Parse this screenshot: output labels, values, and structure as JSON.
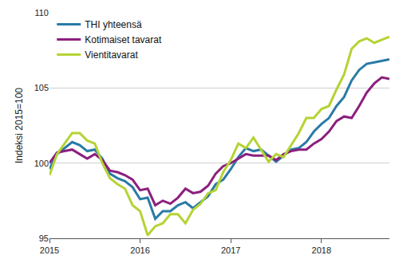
{
  "chart_data": {
    "type": "line",
    "y_label": "Indeksi 2015=100",
    "categories": [
      "2015",
      null,
      null,
      null,
      null,
      null,
      null,
      null,
      null,
      null,
      null,
      null,
      "2016",
      null,
      null,
      null,
      null,
      null,
      null,
      null,
      null,
      null,
      null,
      null,
      "2017",
      null,
      null,
      null,
      null,
      null,
      null,
      null,
      null,
      null,
      null,
      null,
      "2018",
      null,
      null,
      null,
      null,
      null,
      null,
      null,
      null,
      null
    ],
    "series": [
      {
        "name": "THI yhteensä",
        "color": "#2a7aa6",
        "values": [
          99.6,
          100.6,
          101.0,
          101.4,
          101.2,
          100.8,
          100.9,
          100.3,
          99.3,
          99.0,
          98.8,
          98.4,
          97.6,
          97.7,
          96.3,
          96.8,
          96.8,
          97.2,
          97.4,
          97.0,
          97.4,
          97.8,
          98.6,
          98.9,
          99.6,
          100.4,
          101.0,
          100.8,
          100.9,
          100.5,
          100.1,
          100.5,
          100.9,
          101.0,
          101.4,
          102.1,
          102.6,
          103.0,
          103.8,
          104.4,
          105.5,
          106.2,
          106.6,
          106.7,
          106.8,
          106.9
        ]
      },
      {
        "name": "Kotimaiset tavarat",
        "color": "#8c1f7e",
        "values": [
          100.0,
          100.7,
          100.8,
          100.9,
          100.6,
          100.3,
          100.6,
          100.2,
          99.5,
          99.4,
          99.2,
          98.9,
          98.2,
          98.3,
          97.2,
          97.5,
          97.3,
          97.7,
          98.3,
          98.0,
          98.1,
          98.5,
          99.3,
          99.8,
          100.0,
          100.3,
          100.6,
          100.5,
          100.5,
          100.5,
          100.2,
          100.6,
          100.8,
          100.9,
          100.9,
          101.3,
          101.6,
          102.1,
          102.8,
          103.1,
          103.0,
          103.8,
          104.7,
          105.3,
          105.7,
          105.6
        ]
      },
      {
        "name": "Vientitavarat",
        "color": "#b4d334",
        "values": [
          99.2,
          100.6,
          101.3,
          102.0,
          102.0,
          101.5,
          101.3,
          100.0,
          99.0,
          98.6,
          98.3,
          97.2,
          96.8,
          95.2,
          95.8,
          96.0,
          96.6,
          96.6,
          96.0,
          96.9,
          97.3,
          98.0,
          98.2,
          99.4,
          100.2,
          101.3,
          101.0,
          101.7,
          100.9,
          100.1,
          100.6,
          100.4,
          101.2,
          102.0,
          103.0,
          103.0,
          103.6,
          103.8,
          104.9,
          105.9,
          107.6,
          108.1,
          108.3,
          108.0,
          108.2,
          108.4
        ]
      }
    ],
    "ylim": [
      95,
      110
    ],
    "yticks": [
      95,
      100,
      105,
      110
    ],
    "grid": true,
    "legend": "top-left"
  }
}
